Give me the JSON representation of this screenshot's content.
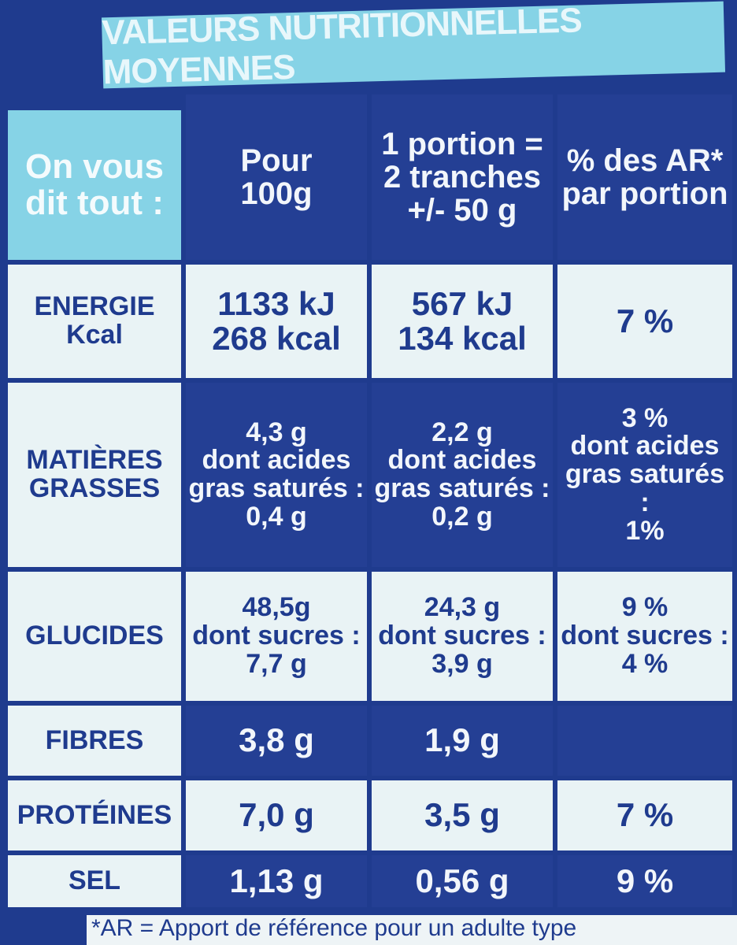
{
  "title": "VALEURS NUTRITIONNELLES MOYENNES",
  "header": {
    "intro": [
      "On vous",
      "dit tout :"
    ],
    "per_100g": [
      "Pour",
      "100g"
    ],
    "per_portion": [
      "1 portion =",
      "2 tranches",
      "+/- 50 g"
    ],
    "percent_ar": [
      "% des AR*",
      "par portion"
    ]
  },
  "rows": [
    {
      "label": [
        "ENERGIE",
        "Kcal"
      ],
      "per_100g": [
        "1133 kJ",
        "268 kcal"
      ],
      "per_portion": [
        "567 kJ",
        "134 kcal"
      ],
      "percent_ar": [
        "7 %"
      ]
    },
    {
      "label": [
        "MATIÈRES",
        "GRASSES"
      ],
      "per_100g": [
        "4,3 g",
        "dont acides",
        "gras saturés :",
        "0,4 g"
      ],
      "per_portion": [
        "2,2 g",
        "dont acides",
        "gras saturés :",
        "0,2 g"
      ],
      "percent_ar": [
        "3 %",
        "dont acides",
        "gras saturés :",
        "1%"
      ]
    },
    {
      "label": [
        "GLUCIDES"
      ],
      "per_100g": [
        "48,5g",
        "dont sucres :",
        "7,7 g"
      ],
      "per_portion": [
        "24,3 g",
        "dont sucres :",
        "3,9 g"
      ],
      "percent_ar": [
        "9 %",
        "dont sucres :",
        "4 %"
      ]
    },
    {
      "label": [
        "FIBRES"
      ],
      "per_100g": [
        "3,8 g"
      ],
      "per_portion": [
        "1,9 g"
      ]
    },
    {
      "label": [
        "PROTÉINES"
      ],
      "per_100g": [
        "7,0 g"
      ],
      "per_portion": [
        "3,5 g"
      ],
      "percent_ar": [
        "7 %"
      ]
    },
    {
      "label": [
        "SEL"
      ],
      "per_100g": [
        "1,13 g"
      ],
      "per_portion": [
        "0,56 g"
      ],
      "percent_ar": [
        "9 %"
      ]
    }
  ],
  "footnote": "*AR = Apport de référence pour un adulte type"
}
